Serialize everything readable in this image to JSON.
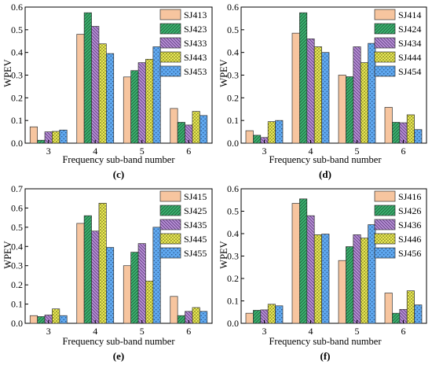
{
  "figure": {
    "category_axis_label": "Frequency sub-band number",
    "value_axis_label": "WPEV"
  },
  "series_colors": [
    "#f7c59f",
    "#3cb371",
    "#b88fd6",
    "#f2f25a",
    "#5fa8ef"
  ],
  "chart_data": [
    {
      "type": "bar",
      "panel_label": "(c)",
      "xlabel": "Frequency sub-band number",
      "ylabel": "WPEV",
      "categories": [
        "3",
        "4",
        "5",
        "6"
      ],
      "ylim": [
        0,
        0.6
      ],
      "yticks": [
        "0.0",
        "0.1",
        "0.2",
        "0.3",
        "0.4",
        "0.5",
        "0.6"
      ],
      "ytick_values": [
        0,
        0.1,
        0.2,
        0.3,
        0.4,
        0.5,
        0.6
      ],
      "legend_position": "top-right",
      "series": [
        {
          "name": "SJ413",
          "values": [
            0.072,
            0.48,
            0.292,
            0.153
          ]
        },
        {
          "name": "SJ423",
          "values": [
            0.013,
            0.575,
            0.32,
            0.092
          ]
        },
        {
          "name": "SJ433",
          "values": [
            0.05,
            0.515,
            0.355,
            0.08
          ]
        },
        {
          "name": "SJ443",
          "values": [
            0.052,
            0.438,
            0.37,
            0.14
          ]
        },
        {
          "name": "SJ453",
          "values": [
            0.058,
            0.395,
            0.425,
            0.122
          ]
        }
      ]
    },
    {
      "type": "bar",
      "panel_label": "(d)",
      "xlabel": "Frequency sub-band number",
      "ylabel": "WPEV",
      "categories": [
        "3",
        "4",
        "5",
        "6"
      ],
      "ylim": [
        0,
        0.6
      ],
      "yticks": [
        "0.0",
        "0.1",
        "0.2",
        "0.3",
        "0.4",
        "0.5",
        "0.6"
      ],
      "ytick_values": [
        0,
        0.1,
        0.2,
        0.3,
        0.4,
        0.5,
        0.6
      ],
      "legend_position": "top-right",
      "series": [
        {
          "name": "SJ414",
          "values": [
            0.055,
            0.485,
            0.3,
            0.158
          ]
        },
        {
          "name": "SJ424",
          "values": [
            0.035,
            0.575,
            0.293,
            0.092
          ]
        },
        {
          "name": "SJ434",
          "values": [
            0.025,
            0.46,
            0.425,
            0.09
          ]
        },
        {
          "name": "SJ444",
          "values": [
            0.095,
            0.425,
            0.355,
            0.125
          ]
        },
        {
          "name": "SJ454",
          "values": [
            0.1,
            0.4,
            0.44,
            0.06
          ]
        }
      ]
    },
    {
      "type": "bar",
      "panel_label": "(e)",
      "xlabel": "Frequency sub-band number",
      "ylabel": "WPEV",
      "categories": [
        "3",
        "4",
        "5",
        "6"
      ],
      "ylim": [
        0,
        0.7
      ],
      "yticks": [
        "0.0",
        "0.1",
        "0.2",
        "0.3",
        "0.4",
        "0.5",
        "0.6",
        "0.7"
      ],
      "ytick_values": [
        0,
        0.1,
        0.2,
        0.3,
        0.4,
        0.5,
        0.6,
        0.7
      ],
      "legend_position": "top-right",
      "series": [
        {
          "name": "SJ415",
          "values": [
            0.04,
            0.52,
            0.3,
            0.14
          ]
        },
        {
          "name": "SJ425",
          "values": [
            0.035,
            0.56,
            0.37,
            0.04
          ]
        },
        {
          "name": "SJ435",
          "values": [
            0.043,
            0.48,
            0.415,
            0.062
          ]
        },
        {
          "name": "SJ445",
          "values": [
            0.075,
            0.625,
            0.22,
            0.082
          ]
        },
        {
          "name": "SJ455",
          "values": [
            0.04,
            0.395,
            0.5,
            0.062
          ]
        }
      ]
    },
    {
      "type": "bar",
      "panel_label": "(f)",
      "xlabel": "Frequency sub-band number",
      "ylabel": "WPEV",
      "categories": [
        "3",
        "4",
        "5",
        "6"
      ],
      "ylim": [
        0,
        0.6
      ],
      "yticks": [
        "0.0",
        "0.1",
        "0.2",
        "0.3",
        "0.4",
        "0.5",
        "0.6"
      ],
      "ytick_values": [
        0,
        0.1,
        0.2,
        0.3,
        0.4,
        0.5,
        0.6
      ],
      "legend_position": "top-right",
      "series": [
        {
          "name": "SJ416",
          "values": [
            0.045,
            0.535,
            0.28,
            0.135
          ]
        },
        {
          "name": "SJ426",
          "values": [
            0.058,
            0.555,
            0.342,
            0.045
          ]
        },
        {
          "name": "SJ436",
          "values": [
            0.06,
            0.48,
            0.395,
            0.062
          ]
        },
        {
          "name": "SJ446",
          "values": [
            0.085,
            0.395,
            0.38,
            0.145
          ]
        },
        {
          "name": "SJ456",
          "values": [
            0.078,
            0.398,
            0.44,
            0.082
          ]
        }
      ]
    }
  ]
}
